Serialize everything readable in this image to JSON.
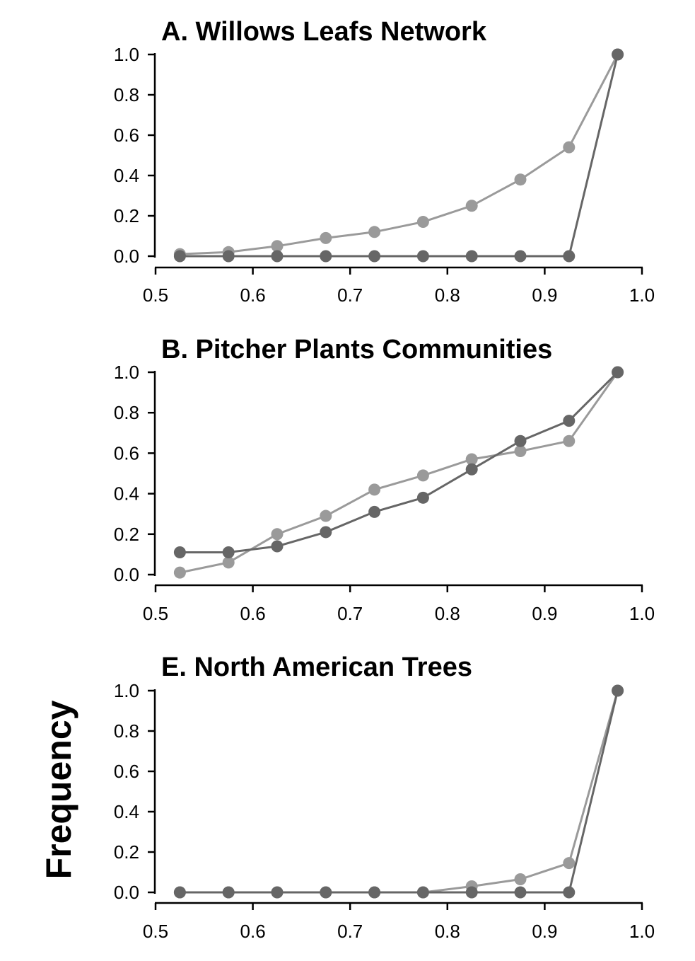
{
  "figure": {
    "shared_ylabel": "Frequency"
  },
  "colors": {
    "series_light": "#9a9a9a",
    "series_dark": "#666666"
  },
  "chart_data": [
    {
      "type": "line",
      "title": "A. Willows Leafs Network",
      "xlim": [
        0.5,
        1.0
      ],
      "ylim": [
        0.0,
        1.0
      ],
      "xticks": [
        "0.5",
        "0.6",
        "0.7",
        "0.8",
        "0.9",
        "1.0"
      ],
      "yticks": [
        "0.0",
        "0.2",
        "0.4",
        "0.6",
        "0.8",
        "1.0"
      ],
      "grid": false,
      "x": [
        0.525,
        0.575,
        0.625,
        0.675,
        0.725,
        0.775,
        0.825,
        0.875,
        0.925,
        0.975
      ],
      "series": [
        {
          "color": "light",
          "values": [
            0.01,
            0.02,
            0.05,
            0.09,
            0.12,
            0.17,
            0.25,
            0.38,
            0.54,
            1.0
          ]
        },
        {
          "color": "dark",
          "values": [
            0.0,
            0.0,
            0.0,
            0.0,
            0.0,
            0.0,
            0.0,
            0.0,
            0.0,
            1.0
          ]
        }
      ]
    },
    {
      "type": "line",
      "title": "B. Pitcher Plants Communities",
      "xlim": [
        0.5,
        1.0
      ],
      "ylim": [
        0.0,
        1.0
      ],
      "xticks": [
        "0.5",
        "0.6",
        "0.7",
        "0.8",
        "0.9",
        "1.0"
      ],
      "yticks": [
        "0.0",
        "0.2",
        "0.4",
        "0.6",
        "0.8",
        "1.0"
      ],
      "grid": false,
      "x": [
        0.525,
        0.575,
        0.625,
        0.675,
        0.725,
        0.775,
        0.825,
        0.875,
        0.925,
        0.975
      ],
      "series": [
        {
          "color": "light",
          "values": [
            0.01,
            0.06,
            0.2,
            0.29,
            0.42,
            0.49,
            0.57,
            0.61,
            0.66,
            1.0
          ]
        },
        {
          "color": "dark",
          "values": [
            0.11,
            0.11,
            0.14,
            0.21,
            0.31,
            0.38,
            0.52,
            0.66,
            0.76,
            1.0
          ]
        }
      ]
    },
    {
      "type": "line",
      "title": "E. North American Trees",
      "xlim": [
        0.5,
        1.0
      ],
      "ylim": [
        0.0,
        1.0
      ],
      "xticks": [
        "0.5",
        "0.6",
        "0.7",
        "0.8",
        "0.9",
        "1.0"
      ],
      "yticks": [
        "0.0",
        "0.2",
        "0.4",
        "0.6",
        "0.8",
        "1.0"
      ],
      "grid": false,
      "x": [
        0.525,
        0.575,
        0.625,
        0.675,
        0.725,
        0.775,
        0.825,
        0.875,
        0.925,
        0.975
      ],
      "series": [
        {
          "color": "light",
          "values": [
            0.0,
            0.0,
            0.0,
            0.0,
            0.0,
            0.0,
            0.03,
            0.065,
            0.145,
            1.0
          ]
        },
        {
          "color": "dark",
          "values": [
            0.0,
            0.0,
            0.0,
            0.0,
            0.0,
            0.0,
            0.0,
            0.0,
            0.0,
            1.0
          ]
        }
      ]
    }
  ]
}
